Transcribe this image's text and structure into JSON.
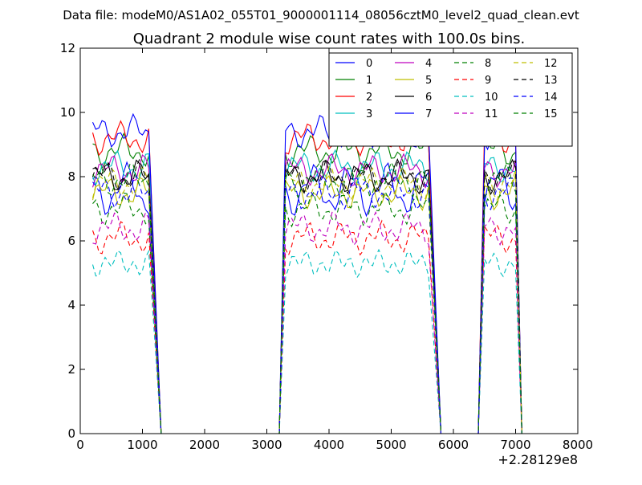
{
  "supertitle": "Data file: modeM0/AS1A02_055T01_9000001114_08056cztM0_level2_quad_clean.evt",
  "chart_data": {
    "type": "line",
    "title": "Quadrant 2 module wise count rates with 100.0s bins.",
    "xlabel": "",
    "ylabel": "",
    "xlim": [
      0,
      8000
    ],
    "ylim": [
      0,
      12
    ],
    "x_offset_label": "+2.28129e8",
    "x_ticks": [
      0,
      1000,
      2000,
      3000,
      4000,
      5000,
      6000,
      7000,
      8000
    ],
    "x_tick_labels": [
      "0",
      "1000",
      "2000",
      "3000",
      "4000",
      "5000",
      "6000",
      "7000",
      "8000"
    ],
    "y_ticks": [
      0,
      2,
      4,
      6,
      8,
      10,
      12
    ],
    "y_tick_labels": [
      "0",
      "2",
      "4",
      "6",
      "8",
      "10",
      "12"
    ],
    "grid": false,
    "legend_position": "top-right",
    "legend_columns": 4,
    "series": [
      {
        "name": "0",
        "color": "#0000ff",
        "dash": "solid",
        "base": 7.6,
        "wave": 0.6,
        "phase": 0.0
      },
      {
        "name": "1",
        "color": "#008000",
        "dash": "solid",
        "base": 8.8,
        "wave": 0.3,
        "phase": 0.7
      },
      {
        "name": "2",
        "color": "#ff0000",
        "dash": "solid",
        "base": 9.2,
        "wave": 0.3,
        "phase": 1.3
      },
      {
        "name": "3",
        "color": "#00bfbf",
        "dash": "solid",
        "base": 8.3,
        "wave": 0.3,
        "phase": 2.1
      },
      {
        "name": "4",
        "color": "#bf00bf",
        "dash": "solid",
        "base": 8.2,
        "wave": 0.3,
        "phase": 2.9
      },
      {
        "name": "5",
        "color": "#bfbf00",
        "dash": "solid",
        "base": 7.5,
        "wave": 0.3,
        "phase": 3.5
      },
      {
        "name": "6",
        "color": "#000000",
        "dash": "solid",
        "base": 8.0,
        "wave": 0.3,
        "phase": 4.2
      },
      {
        "name": "7",
        "color": "#0000ff",
        "dash": "solid",
        "base": 9.4,
        "wave": 0.3,
        "phase": 5.0
      },
      {
        "name": "8",
        "color": "#008000",
        "dash": "dashed",
        "base": 7.0,
        "wave": 0.3,
        "phase": 0.4
      },
      {
        "name": "9",
        "color": "#ff0000",
        "dash": "dashed",
        "base": 6.1,
        "wave": 0.3,
        "phase": 1.1
      },
      {
        "name": "10",
        "color": "#00bfbf",
        "dash": "dashed",
        "base": 5.3,
        "wave": 0.2,
        "phase": 1.8
      },
      {
        "name": "11",
        "color": "#bf00bf",
        "dash": "dashed",
        "base": 6.4,
        "wave": 0.3,
        "phase": 2.4
      },
      {
        "name": "12",
        "color": "#bfbf00",
        "dash": "dashed",
        "base": 7.8,
        "wave": 0.3,
        "phase": 3.1
      },
      {
        "name": "13",
        "color": "#000000",
        "dash": "dashed",
        "base": 8.0,
        "wave": 0.3,
        "phase": 3.8
      },
      {
        "name": "14",
        "color": "#0000ff",
        "dash": "dashed",
        "base": 7.5,
        "wave": 0.3,
        "phase": 4.5
      },
      {
        "name": "15",
        "color": "#008000",
        "dash": "dashed",
        "base": 7.9,
        "wave": 0.3,
        "phase": 5.4
      }
    ],
    "segments": [
      {
        "x_start": 200,
        "x_end": 1100
      },
      {
        "x_start": 3300,
        "x_end": 5600
      },
      {
        "x_start": 6500,
        "x_end": 7000
      }
    ],
    "gap_x_end": [
      1300,
      5800,
      7100
    ],
    "gap_x_start": [
      3200,
      6400
    ]
  }
}
